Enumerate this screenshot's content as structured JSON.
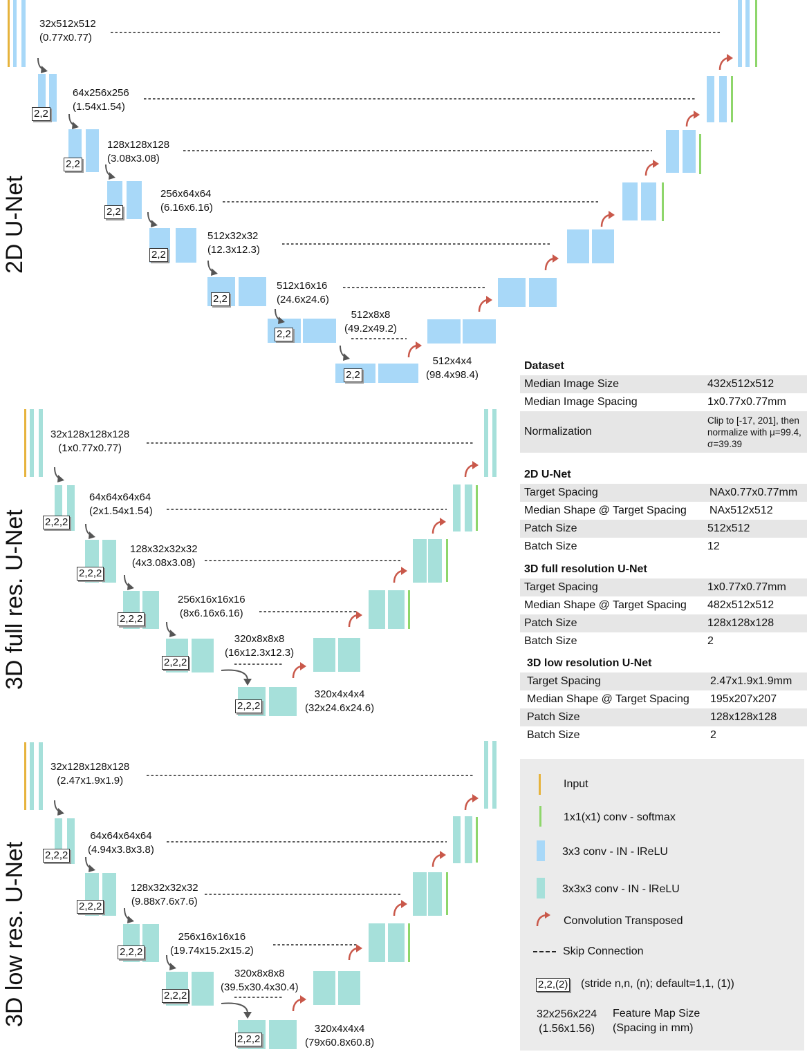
{
  "sections": {
    "s2d": {
      "title": "2D U-Net",
      "levels": [
        {
          "size": "32x512x512",
          "spacing": "(0.77x0.77)"
        },
        {
          "size": "64x256x256",
          "spacing": "(1.54x1.54)",
          "stride": "2,2"
        },
        {
          "size": "128x128x128",
          "spacing": "(3.08x3.08)",
          "stride": "2,2"
        },
        {
          "size": "256x64x64",
          "spacing": "(6.16x6.16)",
          "stride": "2,2"
        },
        {
          "size": "512x32x32",
          "spacing": "(12.3x12.3)",
          "stride": "2,2"
        },
        {
          "size": "512x16x16",
          "spacing": "(24.6x24.6)",
          "stride": "2,2"
        },
        {
          "size": "512x8x8",
          "spacing": "(49.2x49.2)",
          "stride": "2,2"
        },
        {
          "size": "512x4x4",
          "spacing": "(98.4x98.4)",
          "stride": "2,2"
        }
      ]
    },
    "s3f": {
      "title": "3D full res. U-Net",
      "levels": [
        {
          "size": "32x128x128x128",
          "spacing": "(1x0.77x0.77)"
        },
        {
          "size": "64x64x64x64",
          "spacing": "(2x1.54x1.54)",
          "stride": "2,2,2"
        },
        {
          "size": "128x32x32x32",
          "spacing": "(4x3.08x3.08)",
          "stride": "2,2,2"
        },
        {
          "size": "256x16x16x16",
          "spacing": "(8x6.16x6.16)",
          "stride": "2,2,2"
        },
        {
          "size": "320x8x8x8",
          "spacing": "(16x12.3x12.3)",
          "stride": "2,2,2"
        },
        {
          "size": "320x4x4x4",
          "spacing": "(32x24.6x24.6)",
          "stride": "2,2,2"
        }
      ]
    },
    "s3l": {
      "title": "3D low res. U-Net",
      "levels": [
        {
          "size": "32x128x128x128",
          "spacing": "(2.47x1.9x1.9)"
        },
        {
          "size": "64x64x64x64",
          "spacing": "(4.94x3.8x3.8)",
          "stride": "2,2,2"
        },
        {
          "size": "128x32x32x32",
          "spacing": "(9.88x7.6x7.6)",
          "stride": "2,2,2"
        },
        {
          "size": "256x16x16x16",
          "spacing": "(19.74x15.2x15.2)",
          "stride": "2,2,2"
        },
        {
          "size": "320x8x8x8",
          "spacing": "(39.5x30.4x30.4)",
          "stride": "2,2,2"
        },
        {
          "size": "320x4x4x4",
          "spacing": "(79x60.8x60.8)",
          "stride": "2,2,2"
        }
      ]
    }
  },
  "params": {
    "dataset": {
      "title": "Dataset",
      "rows": [
        {
          "k": "Median Image Size",
          "v": "432x512x512"
        },
        {
          "k": "Median Image Spacing",
          "v": "1x0.77x0.77mm"
        },
        {
          "k": "Normalization",
          "v": "Clip to [-17, 201], then normalize with μ=99.4, σ=39.39"
        }
      ]
    },
    "unet2d": {
      "title": "2D U-Net",
      "rows": [
        {
          "k": "Target Spacing",
          "v": "NAx0.77x0.77mm"
        },
        {
          "k": "Median Shape @ Target Spacing",
          "v": "NAx512x512"
        },
        {
          "k": "Patch Size",
          "v": "512x512"
        },
        {
          "k": "Batch Size",
          "v": "12"
        }
      ]
    },
    "full3d": {
      "title": "3D full resolution U-Net",
      "rows": [
        {
          "k": "Target Spacing",
          "v": "1x0.77x0.77mm"
        },
        {
          "k": "Median Shape @ Target Spacing",
          "v": "482x512x512"
        },
        {
          "k": "Patch Size",
          "v": "128x128x128"
        },
        {
          "k": "Batch Size",
          "v": "2"
        }
      ]
    },
    "low3d": {
      "title": "3D low resolution U-Net",
      "rows": [
        {
          "k": "Target Spacing",
          "v": "2.47x1.9x1.9mm"
        },
        {
          "k": "Median Shape @ Target Spacing",
          "v": "195x207x207"
        },
        {
          "k": "Patch Size",
          "v": "128x128x128"
        },
        {
          "k": "Batch Size",
          "v": "2"
        }
      ]
    }
  },
  "legend": {
    "input": "Input",
    "softmax": "1x1(x1) conv - softmax",
    "conv2d": "3x3 conv - IN - lReLU",
    "conv3d": "3x3x3 conv - IN - lReLU",
    "transposed": "Convolution Transposed",
    "skip": "Skip Connection",
    "stride_box": "2,2,(2)",
    "stride_desc": "(stride n,n, (n); default=1,1, (1))",
    "fm_size": "32x256x224",
    "fm_spacing": "(1.56x1.56)",
    "fm_size_desc": "Feature Map Size",
    "fm_spacing_desc": "(Spacing in mm)"
  },
  "colors": {
    "input": "#e6b33c",
    "softmax": "#8ed66b",
    "conv2d": "#a8d8f8",
    "conv3d": "#a6e0da",
    "transposed": "#c9584a",
    "arrow": "#555555"
  }
}
